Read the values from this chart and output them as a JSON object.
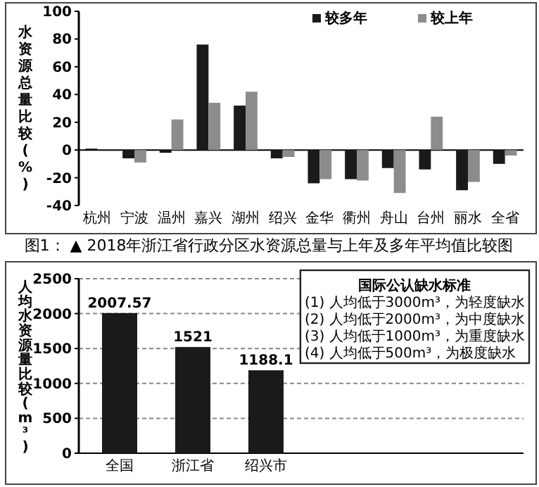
{
  "chart_data": [
    {
      "type": "bar",
      "ylabel": "水资源总量比较(%)",
      "categories": [
        "杭州",
        "宁波",
        "温州",
        "嘉兴",
        "湖州",
        "绍兴",
        "金华",
        "衢州",
        "舟山",
        "台州",
        "丽水",
        "全省"
      ],
      "series": [
        {
          "name": "较多年",
          "color": "#1a1a1a",
          "values": [
            1,
            -6,
            -2,
            76,
            32,
            -6,
            -24,
            -21,
            -13,
            -14,
            -29,
            -10
          ]
        },
        {
          "name": "较上年",
          "color": "#8c8c8c",
          "values": [
            0,
            -9,
            22,
            34,
            42,
            -5,
            -21,
            -22,
            -31,
            24,
            -23,
            -4
          ]
        }
      ],
      "ylim": [
        -40,
        100
      ],
      "yticks": [
        -40,
        -20,
        0,
        20,
        40,
        60,
        80,
        100
      ],
      "legend": "top right",
      "annotations": [
        "图1： ▲ 2018年浙江省行政分区水资源总量与上年及多年平均值比较图"
      ]
    },
    {
      "type": "bar",
      "ylabel": "人均水资源量比较(m³)",
      "categories": [
        "全国",
        "浙江省",
        "绍兴市"
      ],
      "series": [
        {
          "color": "#1a1a1a",
          "values": [
            2007.57,
            1521,
            1188.1
          ]
        }
      ],
      "ylim": [
        0,
        2500
      ],
      "yticks": [
        0,
        500,
        1000,
        1500,
        2000,
        2500
      ],
      "grid": "y",
      "data_labels": true,
      "annotations": [
        "国际公认缺水标准",
        "(1) 人均低于3000m³，为轻度缺水",
        "(2) 人均低于2000m³，为中度缺水",
        "(3) 人均低于1000m³，为重度缺水",
        "(4) 人均低于500m³，为极度缺水"
      ]
    }
  ]
}
